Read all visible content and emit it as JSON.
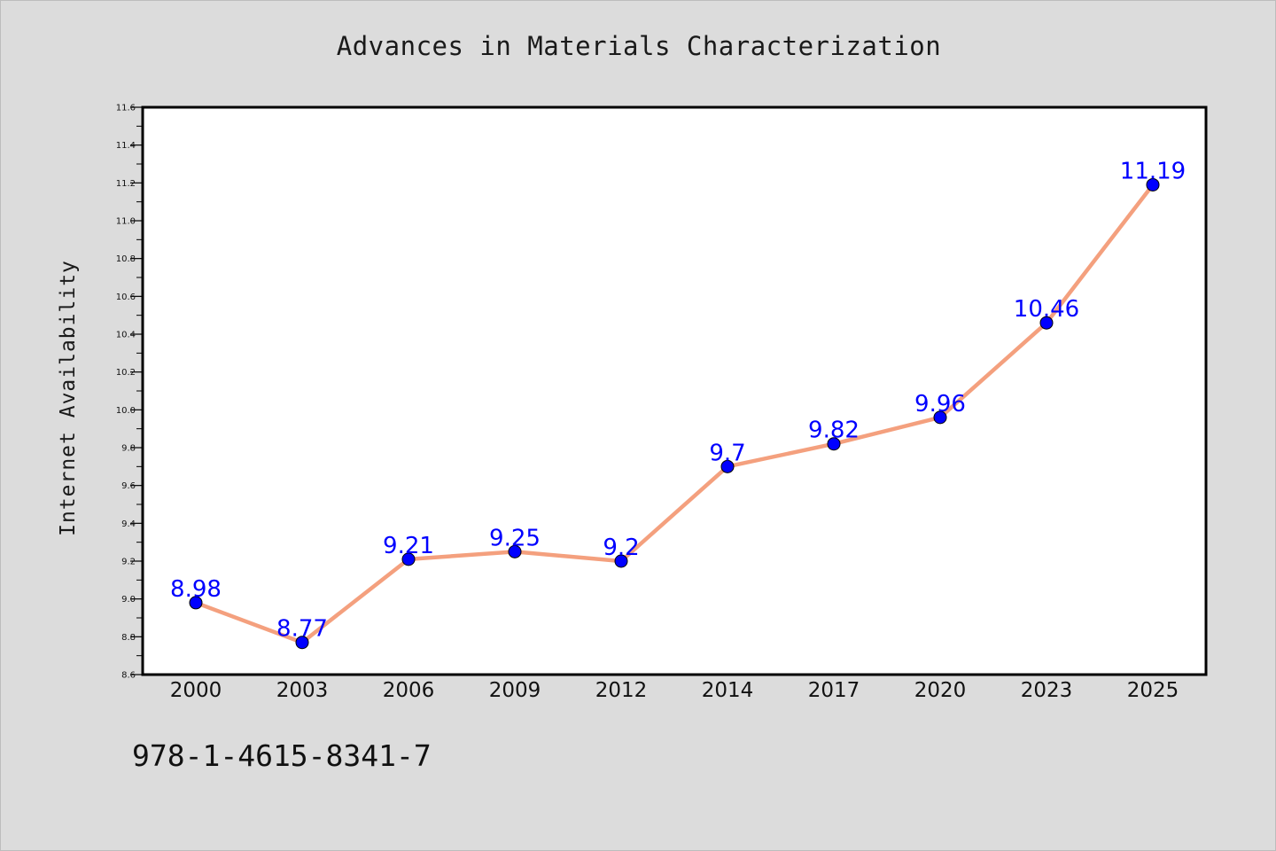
{
  "chart_data": {
    "type": "line",
    "title": "Advances in Materials Characterization",
    "xlabel": "",
    "ylabel": "Internet Availability",
    "categories": [
      "2000",
      "2003",
      "2006",
      "2009",
      "2012",
      "2014",
      "2017",
      "2020",
      "2023",
      "2025"
    ],
    "series": [
      {
        "values": [
          8.98,
          8.77,
          9.21,
          9.25,
          9.2,
          9.7,
          9.82,
          9.96,
          10.46,
          11.19
        ],
        "labels": [
          "8.98",
          "8.77",
          "9.21",
          "9.25",
          "9.2",
          "9.7",
          "9.82",
          "9.96",
          "10.46",
          "11.19"
        ],
        "line_color": "#f4a07e",
        "marker_color": "#0000ff",
        "label_color": "#0000ff"
      }
    ],
    "ylim": [
      8.6,
      11.6
    ],
    "yticks": [
      "8.6",
      "8.8",
      "9.0",
      "9.2",
      "9.4",
      "9.6",
      "9.8",
      "10.0",
      "10.2",
      "10.4",
      "10.6",
      "10.8",
      "11.0",
      "11.2",
      "11.4",
      "11.6"
    ],
    "grid": false,
    "legend": "none",
    "background_color": "#dcdcdc",
    "plot_background_color": "#ffffff"
  },
  "footer": {
    "code": "978-1-4615-8341-7"
  }
}
